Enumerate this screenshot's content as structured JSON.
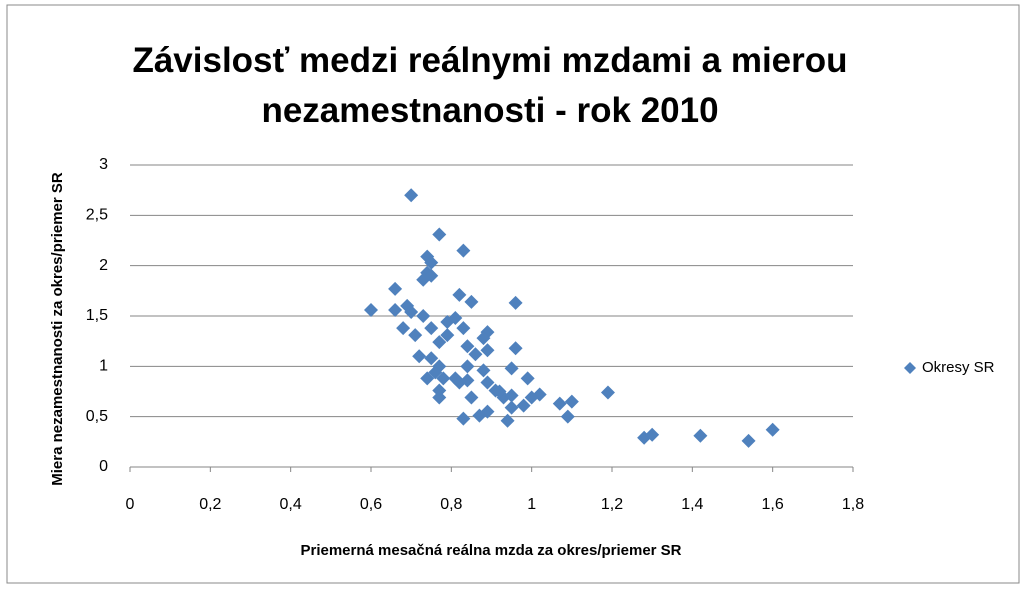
{
  "chart_data": {
    "type": "scatter",
    "title": "Závislosť medzi reálnymi mzdami a mierou nezamestnanosti - rok 2010",
    "x_label": "Priemerná mesačná reálna mzda za okres/priemer SR",
    "y_label": "Miera nezamestnanosti  za okres/priemer SR",
    "xlim": [
      0,
      1.8
    ],
    "xticks": [
      0,
      {
        "value": 0.2,
        "label": "0,2"
      },
      {
        "value": 0.4,
        "label": "0,4"
      },
      {
        "value": 0.6,
        "label": "0,6"
      },
      {
        "value": 0.8,
        "label": "0,8"
      },
      1,
      {
        "value": 1.2,
        "label": "1,2"
      },
      {
        "value": 1.4,
        "label": "1,4"
      },
      {
        "value": 1.6,
        "label": "1,6"
      },
      {
        "value": 1.8,
        "label": "1,8"
      }
    ],
    "ylim": [
      0,
      3
    ],
    "yticks": [
      0,
      {
        "value": 0.5,
        "label": "0,5"
      },
      1,
      {
        "value": 1.5,
        "label": "1,5"
      },
      2,
      {
        "value": 2.5,
        "label": "2,5"
      },
      3
    ],
    "grid": true,
    "legend": "right",
    "series": [
      {
        "name": "Okresy SR",
        "color": "#4f81bd",
        "x": [
          0.6,
          0.7,
          0.77,
          0.83,
          0.74,
          0.75,
          0.74,
          0.75,
          0.73,
          0.66,
          0.82,
          0.85,
          0.96,
          0.66,
          0.69,
          0.7,
          0.73,
          0.81,
          0.79,
          0.68,
          0.75,
          0.83,
          0.71,
          0.79,
          0.89,
          0.88,
          0.77,
          0.84,
          0.96,
          0.86,
          0.89,
          0.72,
          0.75,
          0.77,
          0.84,
          0.95,
          0.88,
          0.74,
          0.78,
          0.81,
          0.99,
          0.76,
          0.82,
          0.84,
          0.89,
          0.91,
          0.77,
          0.93,
          1.02,
          0.95,
          0.77,
          0.85,
          1.0,
          1.19,
          1.07,
          1.1,
          0.98,
          0.95,
          0.89,
          0.87,
          1.09,
          0.83,
          0.94,
          1.28,
          1.3,
          1.42,
          1.54,
          1.6,
          0.92
        ],
        "values": [
          1.56,
          2.7,
          2.31,
          2.15,
          2.09,
          2.03,
          1.93,
          1.9,
          1.86,
          1.77,
          1.71,
          1.64,
          1.63,
          1.56,
          1.6,
          1.54,
          1.5,
          1.48,
          1.44,
          1.38,
          1.38,
          1.38,
          1.31,
          1.31,
          1.34,
          1.28,
          1.24,
          1.2,
          1.18,
          1.12,
          1.16,
          1.1,
          1.08,
          1.0,
          1.0,
          0.98,
          0.96,
          0.88,
          0.88,
          0.88,
          0.88,
          0.94,
          0.84,
          0.86,
          0.84,
          0.76,
          0.76,
          0.69,
          0.72,
          0.71,
          0.69,
          0.69,
          0.69,
          0.74,
          0.63,
          0.65,
          0.61,
          0.59,
          0.55,
          0.51,
          0.5,
          0.48,
          0.46,
          0.29,
          0.32,
          0.31,
          0.26,
          0.37,
          0.75
        ]
      }
    ]
  }
}
